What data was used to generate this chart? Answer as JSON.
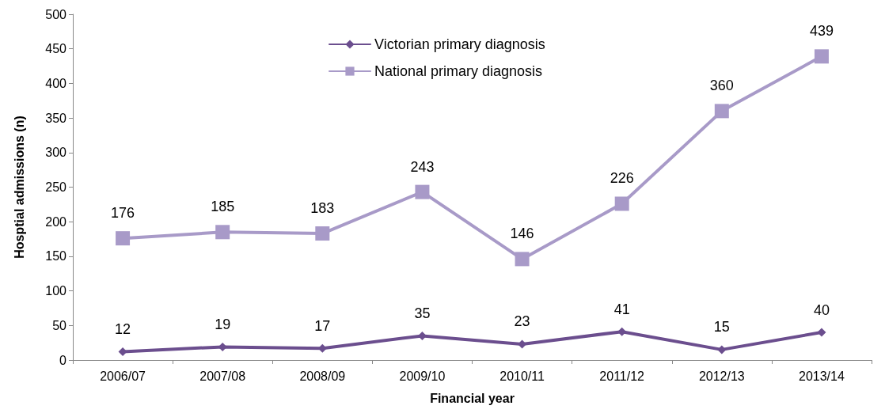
{
  "chart_data": {
    "type": "line",
    "xlabel": "Financial year",
    "ylabel": "Hosptial admissions (n)",
    "categories": [
      "2006/07",
      "2007/08",
      "2008/09",
      "2009/10",
      "2010/11",
      "2011/12",
      "2012/13",
      "2013/14"
    ],
    "series": [
      {
        "name": "Victorian primary diagnosis",
        "color": "#6b4e8e",
        "marker": "diamond",
        "values": [
          12,
          19,
          17,
          35,
          23,
          41,
          15,
          40
        ]
      },
      {
        "name": "National primary diagnosis",
        "color": "#a89ac8",
        "marker": "square",
        "values": [
          176,
          185,
          183,
          243,
          146,
          226,
          360,
          439
        ]
      }
    ],
    "ylim": [
      0,
      500
    ],
    "yticks": [
      0,
      50,
      100,
      150,
      200,
      250,
      300,
      350,
      400,
      450,
      500
    ],
    "data_labels": true,
    "legend": "top",
    "grid": false
  }
}
